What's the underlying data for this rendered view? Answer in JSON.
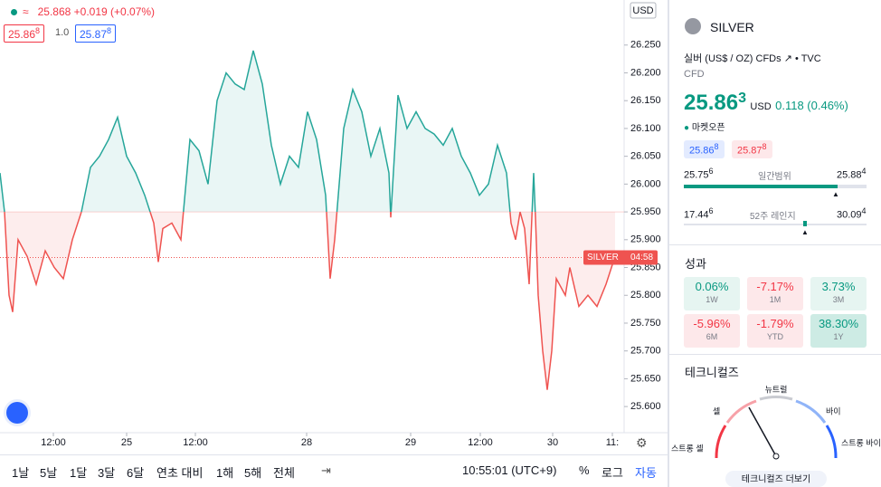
{
  "header": {
    "price": "25.868",
    "change": "+0.019 (+0.07%)",
    "bid": "25.86",
    "bid_sup": "8",
    "spread": "1.0",
    "ask": "25.87",
    "ask_sup": "8"
  },
  "chart_data": {
    "type": "baseline",
    "baseline": 25.95,
    "last_price": 25.868,
    "up_color": "#26a69a",
    "down_color": "#ef5350",
    "xlim": [
      0,
      690
    ],
    "ylim": [
      25.553,
      26.331
    ],
    "yticks": [
      {
        "value": 25.6,
        "label": "25.600"
      },
      {
        "value": 25.65,
        "label": "25.650"
      },
      {
        "value": 25.7,
        "label": "25.700"
      },
      {
        "value": 25.75,
        "label": "25.750"
      },
      {
        "value": 25.8,
        "label": "25.800"
      },
      {
        "value": 25.85,
        "label": "25.850"
      },
      {
        "value": 25.9,
        "label": "25.900"
      },
      {
        "value": 25.95,
        "label": "25.950"
      },
      {
        "value": 26.0,
        "label": "26.000"
      },
      {
        "value": 26.05,
        "label": "26.050"
      },
      {
        "value": 26.1,
        "label": "26.100"
      },
      {
        "value": 26.15,
        "label": "26.150"
      },
      {
        "value": 26.2,
        "label": "26.200"
      },
      {
        "value": 26.25,
        "label": "26.250"
      }
    ],
    "xticks": [
      {
        "value": 59,
        "label": "12:00"
      },
      {
        "value": 140,
        "label": "25"
      },
      {
        "value": 216,
        "label": "12:00"
      },
      {
        "value": 339,
        "label": "28"
      },
      {
        "value": 454,
        "label": "29"
      },
      {
        "value": 531,
        "label": "12:00"
      },
      {
        "value": 611,
        "label": "30"
      },
      {
        "value": 677,
        "label": "11:"
      }
    ],
    "x": [
      0,
      5,
      10,
      14,
      20,
      30,
      40,
      50,
      60,
      70,
      80,
      90,
      100,
      110,
      120,
      130,
      140,
      150,
      160,
      170,
      175,
      180,
      190,
      200,
      210,
      220,
      230,
      240,
      250,
      260,
      270,
      280,
      290,
      300,
      310,
      320,
      330,
      340,
      350,
      360,
      365,
      370,
      380,
      390,
      400,
      410,
      420,
      430,
      432,
      440,
      450,
      460,
      470,
      480,
      490,
      500,
      510,
      520,
      530,
      540,
      550,
      560,
      565,
      570,
      575,
      580,
      585,
      590,
      592,
      595,
      600,
      605,
      610,
      615,
      625,
      630,
      640,
      650,
      660,
      670,
      680
    ],
    "values": [
      26.02,
      25.95,
      25.8,
      25.77,
      25.9,
      25.87,
      25.82,
      25.88,
      25.85,
      25.83,
      25.9,
      25.95,
      26.03,
      26.05,
      26.08,
      26.12,
      26.05,
      26.02,
      25.98,
      25.93,
      25.86,
      25.92,
      25.93,
      25.9,
      26.08,
      26.06,
      26.0,
      26.15,
      26.2,
      26.18,
      26.17,
      26.24,
      26.18,
      26.07,
      26.0,
      26.05,
      26.03,
      26.13,
      26.08,
      25.98,
      25.83,
      25.9,
      26.1,
      26.17,
      26.13,
      26.05,
      26.1,
      26.02,
      25.94,
      26.16,
      26.1,
      26.13,
      26.1,
      26.09,
      26.07,
      26.1,
      26.05,
      26.02,
      25.98,
      26.0,
      26.07,
      26.02,
      25.93,
      25.9,
      25.95,
      25.92,
      25.82,
      26.02,
      25.94,
      25.8,
      25.7,
      25.63,
      25.7,
      25.83,
      25.8,
      25.85,
      25.78,
      25.8,
      25.78,
      25.82,
      25.87
    ],
    "currency": "USD",
    "price_tag": "SILVER",
    "countdown": "04:58"
  },
  "toolbar": {
    "ranges": [
      "1날",
      "5날",
      "1달",
      "3달",
      "6달",
      "연초 대비",
      "1해",
      "5해",
      "전체"
    ],
    "time": "10:55:01 (UTC+9)",
    "percent": "%",
    "log": "로그",
    "auto": "자동"
  },
  "panel": {
    "symbol": "SILVER",
    "description": "실버 (US$ / OZ) CFDs",
    "source": "TVC",
    "kind": "CFD",
    "price": "25.86",
    "price_sup": "3",
    "currency": "USD",
    "change": "0.118 (0.46%)",
    "status": "마켓오픈",
    "bid": "25.86",
    "bid_sup": "8",
    "ask": "25.87",
    "ask_sup": "8",
    "day_low": "25.75",
    "day_low_sup": "6",
    "day_label": "일간범위",
    "day_high": "25.88",
    "day_high_sup": "4",
    "wk_low": "17.44",
    "wk_low_sup": "6",
    "wk_label": "52주 레인지",
    "wk_high": "30.09",
    "wk_high_sup": "4",
    "perf_title": "성과",
    "perf": [
      {
        "value": "0.06%",
        "period": "1W"
      },
      {
        "value": "-7.17%",
        "period": "1M"
      },
      {
        "value": "3.73%",
        "period": "3M"
      },
      {
        "value": "-5.96%",
        "period": "6M"
      },
      {
        "value": "-1.79%",
        "period": "YTD"
      },
      {
        "value": "38.30%",
        "period": "1Y"
      }
    ],
    "tech_title": "테크니컬즈",
    "gauge": {
      "strong_sell": "스트롱 셀",
      "sell": "셀",
      "neutral": "뉴트럴",
      "buy": "바이",
      "strong_buy": "스트롱 바이"
    },
    "more": "테크니컬즈 더보기"
  }
}
